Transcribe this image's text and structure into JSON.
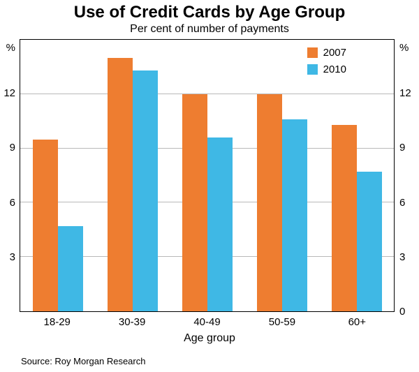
{
  "title": "Use of Credit Cards by Age Group",
  "subtitle": "Per cent of number of payments",
  "source": "Source: Roy Morgan Research",
  "chart_data": {
    "type": "bar",
    "title": "Use of Credit Cards by Age Group",
    "subtitle": "Per cent of number of payments",
    "categories": [
      "18-29",
      "30-39",
      "40-49",
      "50-59",
      "60+"
    ],
    "series": [
      {
        "name": "2007",
        "color": "#EE7D30",
        "values": [
          9.5,
          14.0,
          12.0,
          12.0,
          10.3
        ]
      },
      {
        "name": "2010",
        "color": "#3FB8E5",
        "values": [
          4.7,
          13.3,
          9.6,
          10.6,
          7.7
        ]
      }
    ],
    "xlabel": "Age group",
    "ylabel_left": "%",
    "ylabel_right": "%",
    "ylim": [
      0,
      15
    ],
    "yticks_left": [
      12,
      9,
      6,
      3
    ],
    "yticks_right": [
      12,
      9,
      6,
      3,
      0
    ],
    "gridlines": [
      3,
      6,
      9,
      12
    ],
    "grid": true,
    "legend_position": "top-right",
    "gridline_color": "#b9b9b9",
    "frame_color": "#000000"
  }
}
